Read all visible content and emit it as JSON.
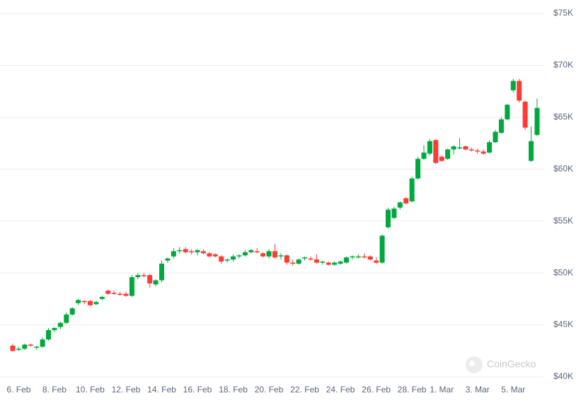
{
  "chart_data": {
    "type": "candlestick",
    "watermark": "CoinGecko",
    "up_color": "#00a83e",
    "down_color": "#ff3a33",
    "grid": true,
    "ylim": [
      40000,
      75000
    ],
    "yticks": [
      {
        "value": 40000,
        "label": "$40K"
      },
      {
        "value": 45000,
        "label": "$45K"
      },
      {
        "value": 50000,
        "label": "$50K"
      },
      {
        "value": 55000,
        "label": "$55K"
      },
      {
        "value": 60000,
        "label": "$60K"
      },
      {
        "value": 65000,
        "label": "$65K"
      },
      {
        "value": 70000,
        "label": "$70K"
      },
      {
        "value": 75000,
        "label": "$75K"
      }
    ],
    "categories": [
      null,
      "6. Feb",
      null,
      null,
      null,
      null,
      null,
      "8. Feb",
      null,
      null,
      null,
      null,
      null,
      "10. Feb",
      null,
      null,
      null,
      null,
      null,
      "12. Feb",
      null,
      null,
      null,
      null,
      null,
      "14. Feb",
      null,
      null,
      null,
      null,
      null,
      "16. Feb",
      null,
      null,
      null,
      null,
      null,
      "18. Feb",
      null,
      null,
      null,
      null,
      null,
      "20. Feb",
      null,
      null,
      null,
      null,
      null,
      "22. Feb",
      null,
      null,
      null,
      null,
      null,
      "24. Feb",
      null,
      null,
      null,
      null,
      null,
      "26. Feb",
      null,
      null,
      null,
      null,
      null,
      "28. Feb",
      null,
      null,
      null,
      null,
      "1. Mar",
      null,
      null,
      null,
      null,
      null,
      "3. Mar",
      null,
      null,
      null,
      null,
      null,
      "5. Mar",
      null,
      null,
      null,
      null
    ],
    "open": [
      43000,
      42600,
      42700,
      43100,
      42800,
      42900,
      43600,
      44500,
      44800,
      45200,
      46000,
      47100,
      47300,
      47300,
      47000,
      47500,
      48300,
      48100,
      48000,
      48000,
      47800,
      49600,
      49800,
      49800,
      48900,
      49300,
      51200,
      51600,
      52100,
      52300,
      52100,
      52000,
      52100,
      51900,
      51800,
      51600,
      51200,
      51300,
      51600,
      51700,
      52000,
      52100,
      51900,
      51600,
      52100,
      51600,
      51700,
      51000,
      50900,
      51400,
      51400,
      51300,
      51000,
      51000,
      50800,
      50900,
      51000,
      51500,
      51600,
      51600,
      51600,
      51200,
      51000,
      54400,
      55300,
      56300,
      57200,
      56900,
      59100,
      61000,
      61500,
      62800,
      61200,
      61000,
      61900,
      62000,
      62200,
      61900,
      61800,
      61700,
      61600,
      62600,
      63500,
      64800,
      67600,
      68500,
      66500,
      60800,
      63300
    ],
    "high": [
      43200,
      42900,
      43200,
      43200,
      43000,
      43800,
      44700,
      44800,
      45300,
      46200,
      46700,
      47500,
      47400,
      47400,
      47300,
      47800,
      48400,
      48300,
      48200,
      48200,
      49800,
      50000,
      50000,
      49900,
      49400,
      51200,
      51500,
      52400,
      52500,
      52500,
      52300,
      52300,
      52300,
      52000,
      51900,
      51700,
      51400,
      51800,
      51800,
      52200,
      52300,
      52400,
      52000,
      52300,
      52800,
      51900,
      51800,
      51300,
      51400,
      51600,
      51600,
      51800,
      51200,
      51100,
      51100,
      51200,
      51600,
      51700,
      51800,
      51900,
      51700,
      51500,
      53700,
      56300,
      56400,
      56900,
      57300,
      59300,
      61200,
      62300,
      62900,
      62900,
      61300,
      62000,
      62300,
      63000,
      62300,
      62100,
      62000,
      61900,
      62800,
      63800,
      65000,
      66300,
      68700,
      68700,
      66600,
      64100,
      66800
    ],
    "low": [
      42400,
      42500,
      42600,
      42900,
      42600,
      42800,
      43500,
      44300,
      44600,
      45100,
      45900,
      46900,
      47000,
      46800,
      46900,
      47400,
      47900,
      47900,
      47800,
      47700,
      47700,
      49400,
      49600,
      48600,
      48700,
      49100,
      51000,
      51400,
      51900,
      51900,
      51800,
      51700,
      51800,
      51500,
      51500,
      50900,
      51000,
      51100,
      51400,
      51600,
      51900,
      51900,
      51500,
      51400,
      51400,
      51300,
      50800,
      50700,
      50800,
      51200,
      51200,
      50900,
      50800,
      50700,
      50700,
      50800,
      50900,
      51300,
      51400,
      51400,
      51200,
      50900,
      50900,
      54300,
      55200,
      56100,
      56600,
      56800,
      59000,
      60900,
      61300,
      60500,
      60700,
      60900,
      61400,
      61900,
      61800,
      61700,
      61500,
      61400,
      61500,
      62500,
      63400,
      64700,
      67400,
      66400,
      63800,
      60700,
      63200
    ],
    "close": [
      42500,
      42700,
      43100,
      43000,
      42900,
      43600,
      44500,
      44700,
      45200,
      46000,
      46600,
      47400,
      47200,
      46900,
      47200,
      47700,
      48000,
      48000,
      47900,
      47800,
      49600,
      49800,
      49700,
      49000,
      49300,
      50900,
      51400,
      52100,
      52200,
      52000,
      52000,
      52200,
      51900,
      51600,
      51600,
      51100,
      51300,
      51600,
      51700,
      52000,
      52200,
      52000,
      51600,
      52100,
      51500,
      51700,
      51000,
      50900,
      51300,
      51500,
      51300,
      51000,
      51100,
      50800,
      51000,
      51100,
      51500,
      51600,
      51600,
      51500,
      51300,
      51000,
      53600,
      56100,
      56200,
      56800,
      56700,
      59100,
      61000,
      61600,
      62700,
      60600,
      60800,
      61900,
      62200,
      62100,
      61900,
      61800,
      61700,
      61500,
      62600,
      63600,
      64800,
      66200,
      68500,
      66600,
      64000,
      62700,
      65900
    ]
  }
}
